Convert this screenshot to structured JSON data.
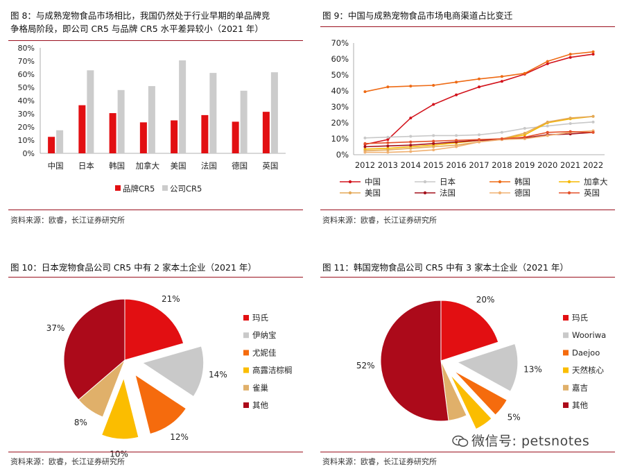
{
  "panels": {
    "p1": {
      "title_l1": "图 8：与成熟宠物食品市场相比，我国仍然处于行业早期的单品牌竞",
      "title_l2": "争格局阶段，即公司 CR5 与品牌 CR5 水平差异较小（2021 年）",
      "source": "资料来源：欧睿，长江证券研究所"
    },
    "p2": {
      "title": "图 9：中国与成熟宠物食品市场电商渠道占比变迁",
      "source": "资料来源：欧睿，长江证券研究所"
    },
    "p3": {
      "title": "图 10：日本宠物食品公司 CR5 中有 2 家本土企业（2021 年）",
      "source": "资料来源：欧睿，长江证券研究所"
    },
    "p4": {
      "title": "图 11：韩国宠物食品公司 CR5 中有 3 家本土企业（2021 年）",
      "source": "资料来源：欧睿，长江证券研究所"
    }
  },
  "watermark": {
    "text": "微信号: petsnotes",
    "icon": "wechat-icon"
  },
  "chart_data": [
    {
      "type": "bar",
      "categories": [
        "中国",
        "日本",
        "韩国",
        "加拿大",
        "美国",
        "法国",
        "德国",
        "英国"
      ],
      "series": [
        {
          "name": "品牌CR5",
          "color": "#e20f12",
          "values": [
            12.5,
            36.5,
            30.5,
            23.5,
            25,
            29,
            24,
            31.5
          ]
        },
        {
          "name": "公司CR5",
          "color": "#cccccc",
          "values": [
            17.5,
            63,
            48,
            51,
            70.5,
            61,
            47.5,
            61.5
          ]
        }
      ],
      "ylim": [
        0,
        80
      ],
      "yticks": [
        "0%",
        "10%",
        "20%",
        "30%",
        "40%",
        "50%",
        "60%",
        "70%",
        "80%"
      ],
      "legend_position": "bottom"
    },
    {
      "type": "line",
      "x": [
        "2012",
        "2013",
        "2014",
        "2015",
        "2016",
        "2017",
        "2018",
        "2019",
        "2020",
        "2021",
        "2022"
      ],
      "ylim": [
        0,
        70
      ],
      "yticks": [
        "0%",
        "10%",
        "20%",
        "30%",
        "40%",
        "50%",
        "60%",
        "70%"
      ],
      "legend_position": "bottom",
      "series": [
        {
          "name": "中国",
          "color": "#d2121b",
          "values": [
            6.5,
            9.5,
            23,
            31.5,
            37.5,
            42.5,
            46,
            50.5,
            57,
            61,
            63
          ]
        },
        {
          "name": "日本",
          "color": "#c8c8c8",
          "values": [
            10.5,
            11,
            11.5,
            12,
            12,
            12.5,
            14,
            16.5,
            18,
            19.5,
            20.5
          ]
        },
        {
          "name": "韩国",
          "color": "#ee6a14",
          "values": [
            39.5,
            42.5,
            43,
            43.5,
            45.5,
            47.5,
            49,
            51,
            58.5,
            63,
            64.5
          ]
        },
        {
          "name": "加拿大",
          "color": "#f5b800",
          "values": [
            3.5,
            4,
            5,
            6,
            7.5,
            9,
            10,
            12.5,
            20,
            22.5,
            24
          ]
        },
        {
          "name": "美国",
          "color": "#e3a857",
          "values": [
            2.5,
            3,
            4,
            5,
            6,
            8,
            10,
            13.5,
            20.5,
            23,
            24
          ]
        },
        {
          "name": "法国",
          "color": "#a3101b",
          "values": [
            5,
            5.5,
            6,
            7,
            8,
            9,
            9.5,
            10.5,
            12.5,
            13,
            14
          ]
        },
        {
          "name": "德国",
          "color": "#f0b070",
          "values": [
            1.5,
            1.5,
            2,
            3,
            5,
            8,
            9.5,
            10,
            12,
            14,
            15
          ]
        },
        {
          "name": "英国",
          "color": "#e4512a",
          "values": [
            7,
            7.5,
            8,
            8.5,
            9,
            9.5,
            10,
            11,
            14,
            14.5,
            14
          ]
        }
      ]
    },
    {
      "type": "pie",
      "start_angle": 0,
      "slices": [
        {
          "label": "玛氏",
          "value": 21,
          "text": "21%",
          "color": "#e20f12",
          "explode": false
        },
        {
          "label": "伊纳宝",
          "value": 14,
          "text": "14%",
          "color": "#c9c9c9",
          "explode": true
        },
        {
          "label": "尤妮佳",
          "value": 12,
          "text": "12%",
          "color": "#f56b0d",
          "explode": true
        },
        {
          "label": "高露洁棕榈",
          "value": 10,
          "text": "10%",
          "color": "#fbbd00",
          "explode": true
        },
        {
          "label": "雀巢",
          "value": 8,
          "text": "8%",
          "color": "#e0b06a",
          "explode": false
        },
        {
          "label": "其他",
          "value": 37,
          "text": "37%",
          "color": "#ac0a1a",
          "explode": false
        }
      ],
      "legend_position": "right"
    },
    {
      "type": "pie",
      "start_angle": 0,
      "slices": [
        {
          "label": "玛氏",
          "value": 20,
          "text": "20%",
          "color": "#e20f12",
          "explode": false
        },
        {
          "label": "Wooriwa",
          "value": 13,
          "text": "13%",
          "color": "#c9c9c9",
          "explode": true
        },
        {
          "label": "Daejoo",
          "value": 5,
          "text": "5%",
          "color": "#f56b0d",
          "explode": true
        },
        {
          "label": "天然核心",
          "value": 5,
          "text": "",
          "color": "#fbbd00",
          "explode": true
        },
        {
          "label": "嘉吉",
          "value": 5,
          "text": "",
          "color": "#e0b06a",
          "explode": false
        },
        {
          "label": "其他",
          "value": 52,
          "text": "52%",
          "color": "#ac0a1a",
          "explode": false
        }
      ],
      "legend_position": "right"
    }
  ]
}
